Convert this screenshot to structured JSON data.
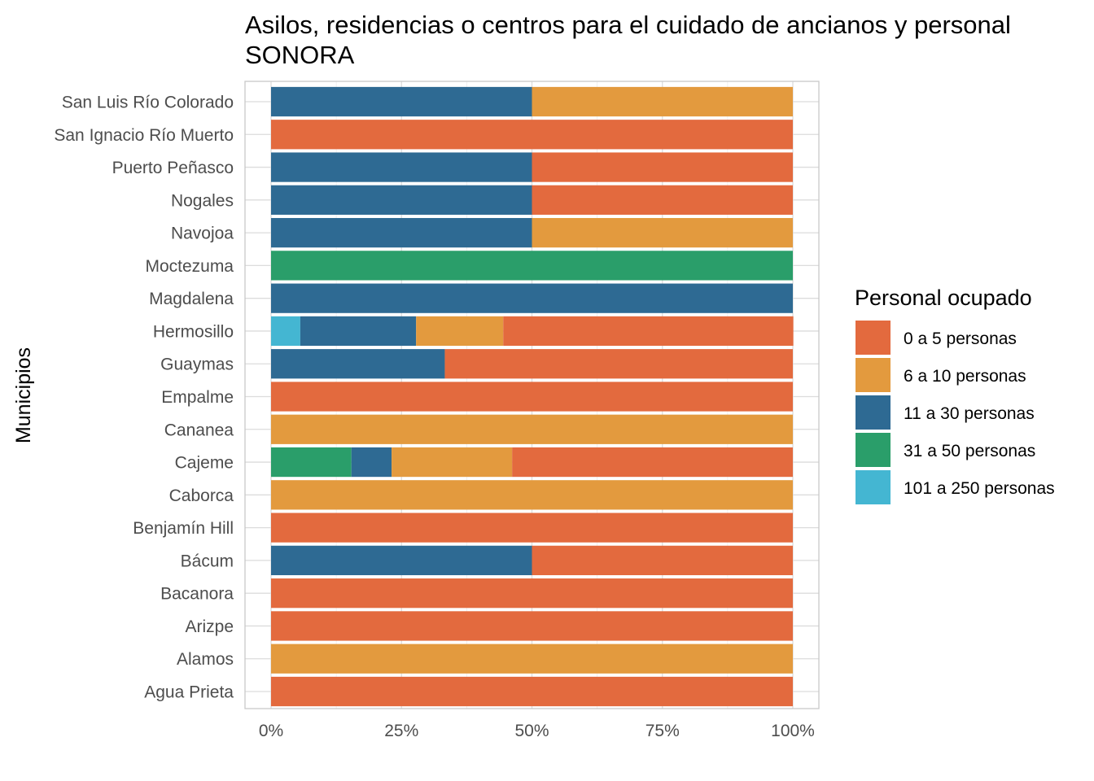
{
  "chart_data": {
    "type": "bar",
    "orientation": "horizontal",
    "stacked": "percent",
    "title": "Asilos, residencias o centros para el cuidado de ancianos y personal",
    "subtitle": "SONORA",
    "ylabel": "Municipios",
    "xlabel": "",
    "x_ticks": [
      "0%",
      "25%",
      "50%",
      "75%",
      "100%"
    ],
    "xlim": [
      0,
      1
    ],
    "grid": true,
    "legend": {
      "title": "Personal ocupado",
      "position": "right"
    },
    "categories": [
      "San Luis Río Colorado",
      "San Ignacio Río Muerto",
      "Puerto Peñasco",
      "Nogales",
      "Navojoa",
      "Moctezuma",
      "Magdalena",
      "Hermosillo",
      "Guaymas",
      "Empalme",
      "Cananea",
      "Cajeme",
      "Caborca",
      "Benjamín Hill",
      "Bácum",
      "Bacanora",
      "Arizpe",
      "Alamos",
      "Agua Prieta"
    ],
    "stack_order": [
      "101 a 250 personas",
      "31 a 50 personas",
      "11 a 30 personas",
      "6 a 10 personas",
      "0 a 5 personas"
    ],
    "series": [
      {
        "name": "0 a 5 personas",
        "color": "#e36a3e",
        "values": [
          0,
          1,
          0.5,
          0.5,
          0,
          0,
          0,
          0.556,
          0.667,
          1,
          0,
          0.538,
          0,
          1,
          0.5,
          1,
          1,
          0,
          1
        ]
      },
      {
        "name": "6 a 10 personas",
        "color": "#e39a3e",
        "values": [
          0.5,
          0,
          0,
          0,
          0.5,
          0,
          0,
          0.167,
          0,
          0,
          1,
          0.231,
          1,
          0,
          0,
          0,
          0,
          1,
          0
        ]
      },
      {
        "name": "11 a 30 personas",
        "color": "#2e6a93",
        "values": [
          0.5,
          0,
          0.5,
          0.5,
          0.5,
          0,
          1,
          0.222,
          0.333,
          0,
          0,
          0.077,
          0,
          0,
          0.5,
          0,
          0,
          0,
          0
        ]
      },
      {
        "name": "31 a 50 personas",
        "color": "#2a9e6a",
        "values": [
          0,
          0,
          0,
          0,
          0,
          1,
          0,
          0,
          0,
          0,
          0,
          0.154,
          0,
          0,
          0,
          0,
          0,
          0,
          0
        ]
      },
      {
        "name": "101 a 250 personas",
        "color": "#44b6d2",
        "values": [
          0,
          0,
          0,
          0,
          0,
          0,
          0,
          0.056,
          0,
          0,
          0,
          0,
          0,
          0,
          0,
          0,
          0,
          0,
          0
        ]
      }
    ]
  }
}
